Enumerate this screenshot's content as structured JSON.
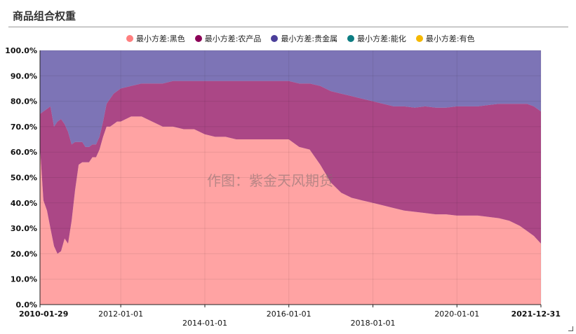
{
  "header": {
    "title": "商品组合权重"
  },
  "chart_data": {
    "type": "area",
    "stacked": true,
    "title": "",
    "xlabel": "",
    "ylabel": "",
    "ylim": [
      0,
      100
    ],
    "y_ticks": [
      "0.0%",
      "10.0%",
      "20.0%",
      "30.0%",
      "40.0%",
      "50.0%",
      "60.0%",
      "70.0%",
      "80.0%",
      "90.0%",
      "100.0%"
    ],
    "x_ticks": [
      "2010-01-29",
      "2012-01-01",
      "2014-01-01",
      "2016-01-01",
      "2018-01-01",
      "2020-01-01",
      "2021-12-31"
    ],
    "legend_position": "top",
    "grid": true,
    "watermark": "作图：紫金天风期货",
    "x": [
      "2010-01-29",
      "2010-02-28",
      "2010-03-31",
      "2010-04-30",
      "2010-05-31",
      "2010-06-30",
      "2010-07-31",
      "2010-08-31",
      "2010-09-30",
      "2010-10-31",
      "2010-11-30",
      "2010-12-31",
      "2011-01-31",
      "2011-02-28",
      "2011-03-31",
      "2011-04-30",
      "2011-05-31",
      "2011-06-30",
      "2011-07-31",
      "2011-08-31",
      "2011-09-30",
      "2011-10-31",
      "2011-11-30",
      "2011-12-31",
      "2012-03-31",
      "2012-06-30",
      "2012-09-30",
      "2012-12-31",
      "2013-03-31",
      "2013-06-30",
      "2013-09-30",
      "2013-12-31",
      "2014-03-31",
      "2014-06-30",
      "2014-09-30",
      "2014-12-31",
      "2015-03-31",
      "2015-06-30",
      "2015-09-30",
      "2015-12-31",
      "2016-03-31",
      "2016-06-30",
      "2016-09-30",
      "2016-12-31",
      "2017-03-31",
      "2017-06-30",
      "2017-09-30",
      "2017-12-31",
      "2018-03-31",
      "2018-06-30",
      "2018-09-30",
      "2018-12-31",
      "2019-03-31",
      "2019-06-30",
      "2019-09-30",
      "2019-12-31",
      "2020-03-31",
      "2020-06-30",
      "2020-09-30",
      "2020-12-31",
      "2021-03-31",
      "2021-06-30",
      "2021-08-31",
      "2021-10-31",
      "2021-12-31"
    ],
    "series": [
      {
        "name": "最小方差:黑色",
        "color": "#ff7f7f",
        "values": [
          62,
          41,
          37,
          30,
          23,
          20,
          21,
          26,
          24,
          33,
          45,
          55,
          56,
          56,
          56,
          58,
          58,
          61,
          66,
          70,
          70,
          71,
          72,
          72,
          74,
          74,
          72,
          70,
          70,
          69,
          69,
          67,
          66,
          66,
          65,
          65,
          65,
          65,
          65,
          65,
          62,
          61,
          55,
          48,
          44,
          42,
          41,
          40,
          39,
          38,
          37,
          36.5,
          36,
          35.5,
          35.5,
          35,
          35,
          35,
          34.5,
          34,
          33,
          31,
          29,
          27,
          24
        ]
      },
      {
        "name": "最小方差:农产品",
        "color": "#8b0057",
        "values": [
          13,
          35,
          40,
          48,
          47,
          52,
          52,
          45,
          44,
          30,
          19,
          9,
          8,
          6,
          6,
          5,
          5,
          5,
          6,
          9,
          11,
          12,
          12,
          13,
          12,
          13,
          15,
          17,
          18,
          19,
          19,
          21,
          22,
          22,
          23,
          23,
          23,
          23,
          23,
          23,
          25,
          26,
          31,
          36,
          39,
          40,
          40,
          40,
          40,
          40,
          41,
          41,
          42,
          42,
          42,
          43,
          43,
          43,
          44,
          45,
          46,
          48,
          50,
          51,
          52
        ]
      },
      {
        "name": "最小方差:贵金属",
        "color": "#4b3f9a",
        "values": [
          25,
          24,
          23,
          22,
          30,
          28,
          27,
          29,
          32,
          37,
          36,
          36,
          36,
          38,
          38,
          37,
          37,
          34,
          28,
          21,
          19,
          17,
          16,
          15,
          14,
          13,
          13,
          13,
          12,
          12,
          12,
          12,
          12,
          12,
          12,
          12,
          12,
          12,
          12,
          12,
          13,
          13,
          14,
          16,
          17,
          18,
          19,
          20,
          21,
          22,
          22,
          22.5,
          22,
          22.5,
          22.5,
          22,
          22,
          22,
          21.5,
          21,
          21,
          21,
          21,
          22,
          24
        ]
      },
      {
        "name": "最小方差:能化",
        "color": "#0d7d82",
        "values": [
          0,
          0,
          0,
          0,
          0,
          0,
          0,
          0,
          0,
          0,
          0,
          0,
          0,
          0,
          0,
          0,
          0,
          0,
          0,
          0,
          0,
          0,
          0,
          0,
          0,
          0,
          0,
          0,
          0,
          0,
          0,
          0,
          0,
          0,
          0,
          0,
          0,
          0,
          0,
          0,
          0,
          0,
          0,
          0,
          0,
          0,
          0,
          0,
          0,
          0,
          0,
          0,
          0,
          0,
          0,
          0,
          0,
          0,
          0,
          0,
          0,
          0,
          0,
          0,
          0
        ]
      },
      {
        "name": "最小方差:有色",
        "color": "#f5b800",
        "values": [
          0,
          0,
          0,
          0,
          0,
          0,
          0,
          0,
          0,
          0,
          0,
          0,
          0,
          0,
          0,
          0,
          0,
          0,
          0,
          0,
          0,
          0,
          0,
          0,
          0,
          0,
          0,
          0,
          0,
          0,
          0,
          0,
          0,
          0,
          0,
          0,
          0,
          0,
          0,
          0,
          0,
          0,
          0,
          0,
          0,
          0,
          0,
          0,
          0,
          0,
          0,
          0,
          0,
          0,
          0,
          0,
          0,
          0,
          0,
          0,
          0,
          0,
          0,
          0,
          0
        ]
      }
    ]
  }
}
